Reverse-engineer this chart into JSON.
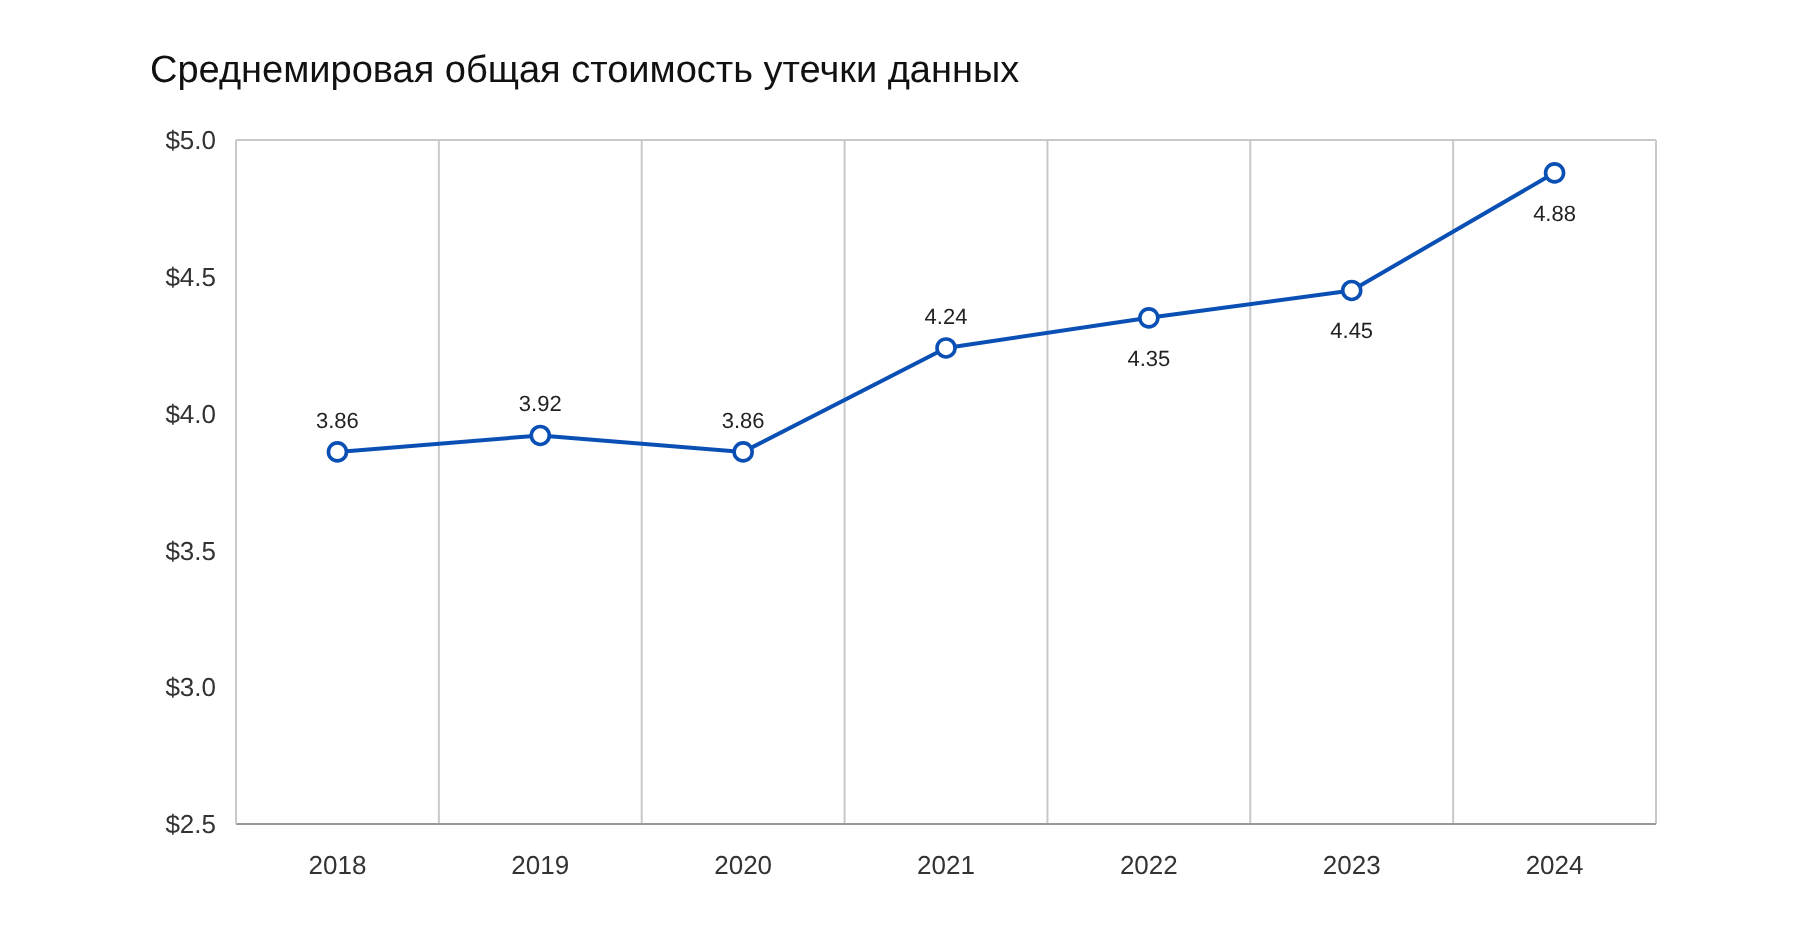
{
  "chart_data": {
    "type": "line",
    "title": "Среднемировая общая стоимость утечки данных",
    "categories": [
      "2018",
      "2019",
      "2020",
      "2021",
      "2022",
      "2023",
      "2024"
    ],
    "series": [
      {
        "color": "#0a50b4",
        "values": [
          3.86,
          3.92,
          3.86,
          4.24,
          4.35,
          4.45,
          4.88
        ]
      }
    ],
    "ylim": [
      2.5,
      5.0
    ],
    "yticks": [
      {
        "value": 2.5,
        "label": "$2.5"
      },
      {
        "value": 3.0,
        "label": "$3.0"
      },
      {
        "value": 3.5,
        "label": "$3.5"
      },
      {
        "value": 4.0,
        "label": "$4.0"
      },
      {
        "value": 4.5,
        "label": "$4.5"
      },
      {
        "value": 5.0,
        "label": "$5.0"
      }
    ],
    "grid": "x",
    "marker": "circle",
    "data_labels": true
  }
}
